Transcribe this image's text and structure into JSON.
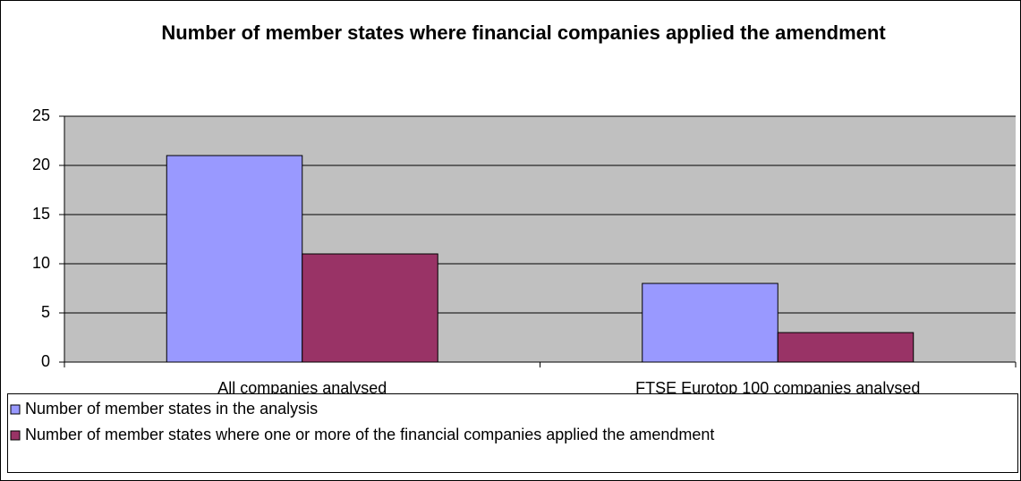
{
  "chart_data": {
    "type": "bar",
    "title": "Number of member states where financial companies applied the amendment",
    "categories": [
      "All companies analysed",
      "FTSE Eurotop 100 companies analysed"
    ],
    "series": [
      {
        "name": "Number of member states in the analysis",
        "color": "#9999ff",
        "values": [
          21,
          8
        ]
      },
      {
        "name": "Number of member states where one or more of the financial companies applied the amendment",
        "color": "#993366",
        "values": [
          11,
          3
        ]
      }
    ],
    "ylim": [
      0,
      25
    ],
    "yticks": [
      0,
      5,
      10,
      15,
      20,
      25
    ],
    "grid": true,
    "legend": "bottom",
    "plot_background": "#c0c0c0"
  }
}
